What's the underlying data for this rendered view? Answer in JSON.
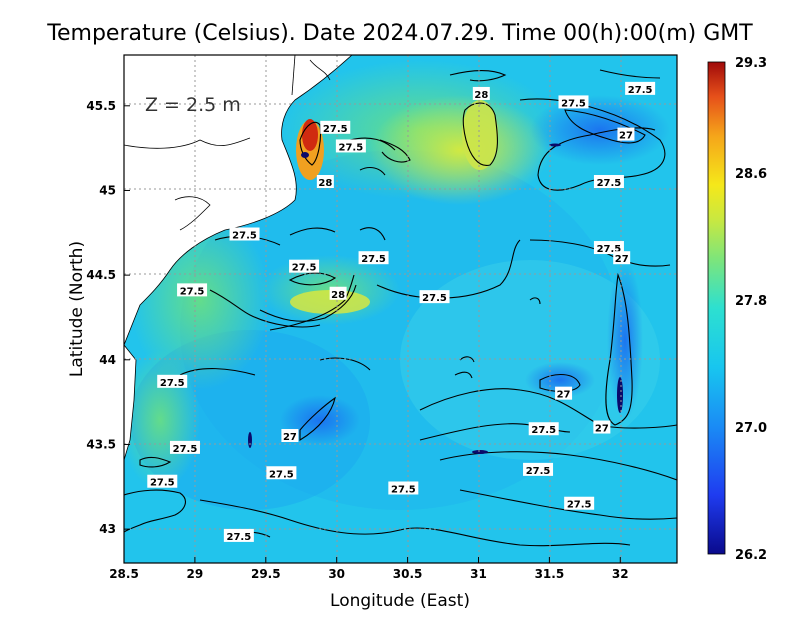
{
  "title": "Temperature (Celsius). Date 2024.07.29. Time 00(h):00(m)  GMT",
  "depth_label": "Z = 2.5 m",
  "chart_data": {
    "type": "heatmap",
    "title": "Temperature (Celsius). Date 2024.07.29. Time 00(h):00(m)  GMT",
    "xlabel": "Longitude (East)",
    "ylabel": "Latitude (North)",
    "xlim": [
      28.5,
      32.4
    ],
    "ylim": [
      42.8,
      45.8
    ],
    "x_ticks": [
      "28.5",
      "29",
      "29.5",
      "30",
      "30.5",
      "31",
      "31.5",
      "32"
    ],
    "x_tick_values": [
      28.5,
      29,
      29.5,
      30,
      30.5,
      31,
      31.5,
      32
    ],
    "y_ticks": [
      "43",
      "43.5",
      "44",
      "44.5",
      "45",
      "45.5"
    ],
    "y_tick_values": [
      43,
      43.5,
      44,
      44.5,
      45,
      45.5
    ],
    "grid": true,
    "colorbar": {
      "min": 26.2,
      "max": 29.3,
      "ticks": [
        "29.3",
        "28.6",
        "27.8",
        "27.0",
        "26.2"
      ],
      "tick_values": [
        29.3,
        28.6,
        27.8,
        27.0,
        26.2
      ]
    },
    "contour_labels": [
      {
        "text": "28",
        "lon": 31.02,
        "lat": 45.57
      },
      {
        "text": "27.5",
        "lon": 31.67,
        "lat": 45.52
      },
      {
        "text": "27.5",
        "lon": 32.14,
        "lat": 45.6
      },
      {
        "text": "27",
        "lon": 32.04,
        "lat": 45.33
      },
      {
        "text": "27.5",
        "lon": 29.99,
        "lat": 45.37
      },
      {
        "text": "27.5",
        "lon": 30.1,
        "lat": 45.26
      },
      {
        "text": "28",
        "lon": 29.92,
        "lat": 45.05
      },
      {
        "text": "27.5",
        "lon": 31.92,
        "lat": 45.05
      },
      {
        "text": "27.5",
        "lon": 29.35,
        "lat": 44.74
      },
      {
        "text": "27.5",
        "lon": 31.92,
        "lat": 44.66
      },
      {
        "text": "27",
        "lon": 32.01,
        "lat": 44.6
      },
      {
        "text": "27.5",
        "lon": 30.26,
        "lat": 44.6
      },
      {
        "text": "27.5",
        "lon": 29.77,
        "lat": 44.55
      },
      {
        "text": "27.5",
        "lon": 28.98,
        "lat": 44.41
      },
      {
        "text": "28",
        "lon": 30.01,
        "lat": 44.39
      },
      {
        "text": "27.5",
        "lon": 30.69,
        "lat": 44.37
      },
      {
        "text": "27.5",
        "lon": 28.84,
        "lat": 43.87
      },
      {
        "text": "27",
        "lon": 31.6,
        "lat": 43.8
      },
      {
        "text": "27",
        "lon": 31.87,
        "lat": 43.6
      },
      {
        "text": "27.5",
        "lon": 31.46,
        "lat": 43.59
      },
      {
        "text": "27",
        "lon": 29.67,
        "lat": 43.55
      },
      {
        "text": "27.5",
        "lon": 28.93,
        "lat": 43.48
      },
      {
        "text": "27.5",
        "lon": 31.42,
        "lat": 43.35
      },
      {
        "text": "27.5",
        "lon": 29.61,
        "lat": 43.33
      },
      {
        "text": "27.5",
        "lon": 28.77,
        "lat": 43.28
      },
      {
        "text": "27.5",
        "lon": 30.47,
        "lat": 43.24
      },
      {
        "text": "27.5",
        "lon": 31.71,
        "lat": 43.15
      },
      {
        "text": "27.5",
        "lon": 29.31,
        "lat": 42.96
      }
    ]
  }
}
